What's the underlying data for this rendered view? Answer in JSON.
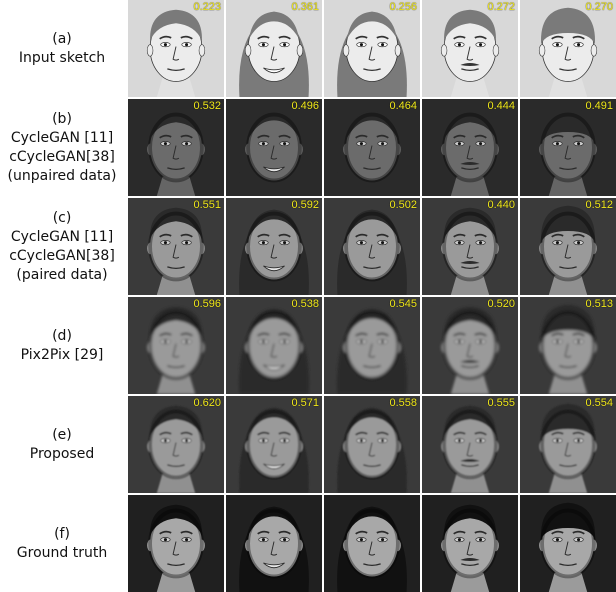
{
  "rows": [
    {
      "id": "a",
      "label_lines": [
        "(a)",
        "Input sketch"
      ],
      "kind": "sketch",
      "scores": [
        "0.223",
        "0.361",
        "0.256",
        "0.272",
        "0.270"
      ]
    },
    {
      "id": "b",
      "label_lines": [
        "(b)",
        "CycleGAN [11]",
        "cCycleGAN[38]",
        "(unpaired data)"
      ],
      "kind": "synth-dark",
      "scores": [
        "0.532",
        "0.496",
        "0.464",
        "0.444",
        "0.491"
      ]
    },
    {
      "id": "c",
      "label_lines": [
        "(c)",
        "CycleGAN [11]",
        "cCycleGAN[38]",
        "(paired data)"
      ],
      "kind": "synth",
      "scores": [
        "0.551",
        "0.592",
        "0.502",
        "0.440",
        "0.512"
      ]
    },
    {
      "id": "d",
      "label_lines": [
        "(d)",
        "Pix2Pix [29]"
      ],
      "kind": "synth-blur",
      "scores": [
        "0.596",
        "0.538",
        "0.545",
        "0.520",
        "0.513"
      ]
    },
    {
      "id": "e",
      "label_lines": [
        "(e)",
        "Proposed"
      ],
      "kind": "synth-smooth",
      "scores": [
        "0.620",
        "0.571",
        "0.558",
        "0.555",
        "0.554"
      ]
    },
    {
      "id": "f",
      "label_lines": [
        "(f)",
        "Ground truth"
      ],
      "kind": "photo",
      "scores": [
        "",
        "",
        "",
        "",
        ""
      ]
    }
  ],
  "subjects": [
    {
      "hair": "short",
      "gender": "male",
      "expression": "neutral"
    },
    {
      "hair": "long",
      "gender": "female",
      "expression": "smile"
    },
    {
      "hair": "long",
      "gender": "female",
      "expression": "neutral"
    },
    {
      "hair": "short",
      "gender": "male",
      "expression": "moustache"
    },
    {
      "hair": "bangs",
      "gender": "male",
      "expression": "neutral"
    }
  ],
  "palette": {
    "score_text": "#f2ea1c",
    "sketch_bg": "#d9d9d9",
    "photo_bg": "#1c1c1c"
  }
}
